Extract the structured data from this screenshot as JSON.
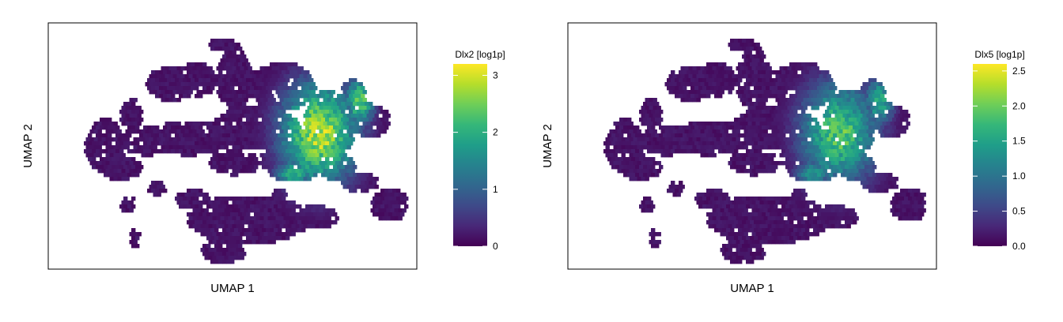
{
  "figure": {
    "colormap": [
      "#440154",
      "#482878",
      "#3e4a89",
      "#31688e",
      "#26828e",
      "#1f9e89",
      "#35b779",
      "#6ece58",
      "#b5de2b",
      "#fde725"
    ],
    "background": "#ffffff",
    "frame_color": "#000000"
  },
  "chart_data": [
    {
      "type": "scatter",
      "subtype": "hexbin embedding colored by expression",
      "xlabel": "UMAP 1",
      "ylabel": "UMAP 2",
      "legend_title": "Dlx2 [log1p]",
      "legend_placement": "right",
      "color_range": [
        0,
        3.2
      ],
      "color_ticks": [
        0,
        1,
        2,
        3
      ],
      "color_tick_labels": [
        "0",
        "1",
        "2",
        "3"
      ],
      "grid": false,
      "axis_ticks_shown": false,
      "high_expression_region": "right-center arm of the embedding"
    },
    {
      "type": "scatter",
      "subtype": "hexbin embedding colored by expression",
      "xlabel": "UMAP 1",
      "ylabel": "UMAP 2",
      "legend_title": "Dlx5 [log1p]",
      "legend_placement": "right",
      "color_range": [
        0,
        2.6
      ],
      "color_ticks": [
        0,
        0.5,
        1,
        1.5,
        2,
        2.5
      ],
      "color_tick_labels": [
        "0.0",
        "0.5",
        "1.0",
        "1.5",
        "2.0",
        "2.5"
      ],
      "grid": false,
      "axis_ticks_shown": false,
      "high_expression_region": "right-center arm of the embedding"
    }
  ]
}
